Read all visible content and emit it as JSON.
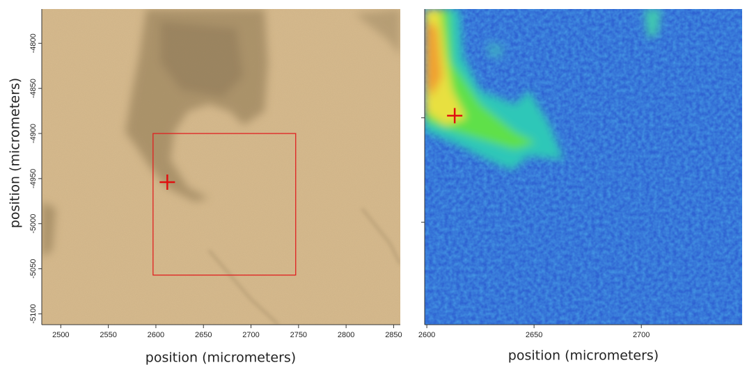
{
  "chart_data": [
    {
      "type": "image",
      "x_label": "position (micrometers)",
      "y_label": "position (micrometers)",
      "xlim": [
        2480,
        2857
      ],
      "ylim": [
        -4762,
        -5112
      ],
      "xticks": [
        2500,
        2550,
        2600,
        2650,
        2700,
        2750,
        2800,
        2850
      ],
      "yticks": [
        -4800,
        -4850,
        -4900,
        -4950,
        -5000,
        -5050,
        -5100
      ],
      "marker": {
        "x": 2612,
        "y": -4954,
        "color": "#e01010"
      },
      "region": {
        "x": [
          2597,
          2747
        ],
        "y": [
          -4900,
          -5057
        ],
        "color": "#e02020"
      }
    },
    {
      "type": "image",
      "x_label": "position (micrometers)",
      "xlim": [
        2599,
        2747
      ],
      "ylim": [
        -4898,
        -5049
      ],
      "xticks": [
        2600,
        2650,
        2700
      ],
      "yticks": [
        -4950,
        -5000
      ],
      "y_tick_labels": false,
      "marker": {
        "x": 2613,
        "y": -4949,
        "color": "#e01010"
      }
    }
  ]
}
